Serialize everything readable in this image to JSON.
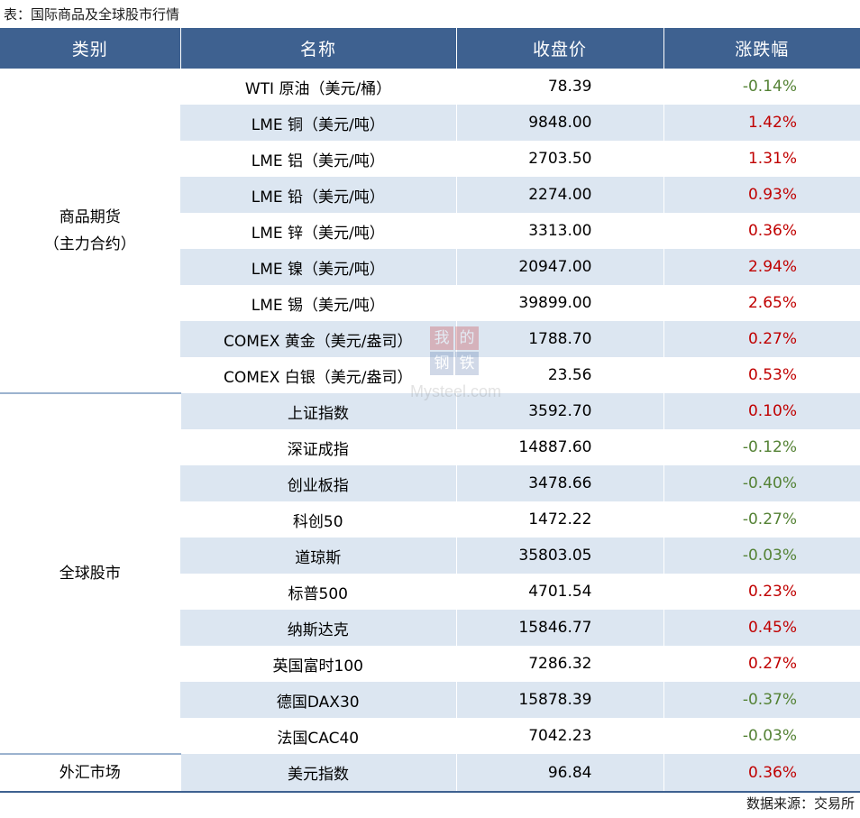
{
  "caption": "表：国际商品及全球股市行情",
  "headers": [
    "类别",
    "名称",
    "收盘价",
    "涨跌幅"
  ],
  "categories": {
    "commodities": [
      "商品期货",
      "（主力合约）"
    ],
    "stocks": "全球股市",
    "fx": "外汇市场"
  },
  "rows": [
    {
      "name": "WTI 原油（美元/桶）",
      "close": "78.39",
      "change": "-0.14%",
      "dir": "neg"
    },
    {
      "name": "LME 铜（美元/吨）",
      "close": "9848.00",
      "change": "1.42%",
      "dir": "pos"
    },
    {
      "name": "LME 铝（美元/吨）",
      "close": "2703.50",
      "change": "1.31%",
      "dir": "pos"
    },
    {
      "name": "LME 铅（美元/吨）",
      "close": "2274.00",
      "change": "0.93%",
      "dir": "pos"
    },
    {
      "name": "LME 锌（美元/吨）",
      "close": "3313.00",
      "change": "0.36%",
      "dir": "pos"
    },
    {
      "name": "LME 镍（美元/吨）",
      "close": "20947.00",
      "change": "2.94%",
      "dir": "pos"
    },
    {
      "name": "LME 锡（美元/吨）",
      "close": "39899.00",
      "change": "2.65%",
      "dir": "pos"
    },
    {
      "name": "COMEX 黄金（美元/盎司）",
      "close": "1788.70",
      "change": "0.27%",
      "dir": "pos"
    },
    {
      "name": "COMEX 白银（美元/盎司）",
      "close": "23.56",
      "change": "0.53%",
      "dir": "pos"
    },
    {
      "name": "上证指数",
      "close": "3592.70",
      "change": "0.10%",
      "dir": "pos"
    },
    {
      "name": "深证成指",
      "close": "14887.60",
      "change": "-0.12%",
      "dir": "neg"
    },
    {
      "name": "创业板指",
      "close": "3478.66",
      "change": "-0.40%",
      "dir": "neg"
    },
    {
      "name": "科创50",
      "close": "1472.22",
      "change": "-0.27%",
      "dir": "neg"
    },
    {
      "name": "道琼斯",
      "close": "35803.05",
      "change": "-0.03%",
      "dir": "neg"
    },
    {
      "name": "标普500",
      "close": "4701.54",
      "change": "0.23%",
      "dir": "pos"
    },
    {
      "name": "纳斯达克",
      "close": "15846.77",
      "change": "0.45%",
      "dir": "pos"
    },
    {
      "name": "英国富时100",
      "close": "7286.32",
      "change": "0.27%",
      "dir": "pos"
    },
    {
      "name": "德国DAX30",
      "close": "15878.39",
      "change": "-0.37%",
      "dir": "neg"
    },
    {
      "name": "法国CAC40",
      "close": "7042.23",
      "change": "-0.03%",
      "dir": "neg"
    },
    {
      "name": "美元指数",
      "close": "96.84",
      "change": "0.36%",
      "dir": "pos"
    }
  ],
  "colors": {
    "header_bg": "#3e6190",
    "alt_row_bg": "#dce6f1",
    "up": "#c00000",
    "down": "#548235"
  },
  "source": "数据来源：交易所",
  "watermark": {
    "chars": [
      "我",
      "的",
      "钢",
      "铁"
    ],
    "text": "Mysteel.com"
  }
}
